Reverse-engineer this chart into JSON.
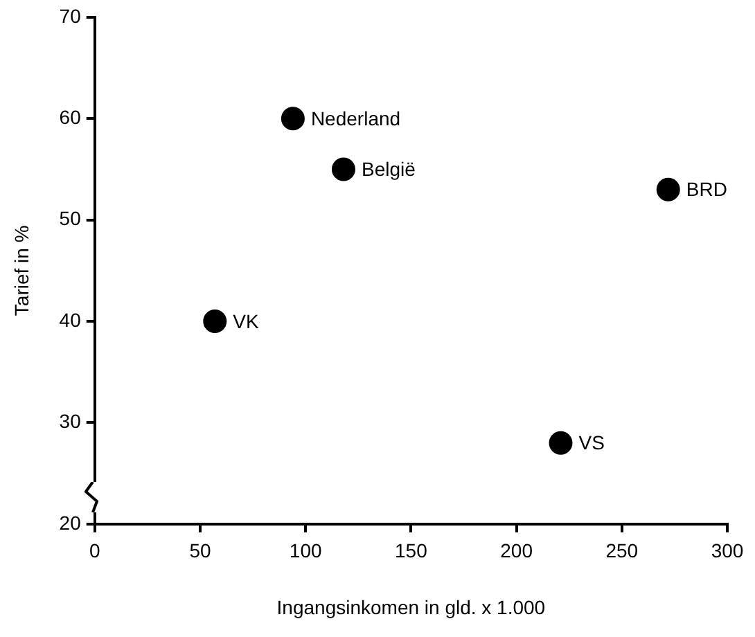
{
  "chart_data": {
    "type": "scatter",
    "xlabel": "Ingangsinkomen in gld. x 1.000",
    "ylabel": "Tarief in %",
    "x": [
      94,
      118,
      272,
      57,
      221
    ],
    "values": [
      60,
      55,
      53,
      40,
      28
    ],
    "color": "#000000",
    "marker": "circle",
    "grid": false,
    "legend": false,
    "xlim": [
      0,
      300
    ],
    "xticks": [
      0,
      50,
      100,
      150,
      200,
      250,
      300
    ],
    "ylim": [
      20,
      70
    ],
    "yticks": [
      20,
      30,
      40,
      50,
      60,
      70
    ],
    "annotations": [
      {
        "text": "Nederland",
        "x": 94,
        "y": 60
      },
      {
        "text": "België",
        "x": 118,
        "y": 55
      },
      {
        "text": "BRD",
        "x": 272,
        "y": 53
      },
      {
        "text": "VK",
        "x": 57,
        "y": 40
      },
      {
        "text": "VS",
        "x": 221,
        "y": 28
      }
    ]
  }
}
